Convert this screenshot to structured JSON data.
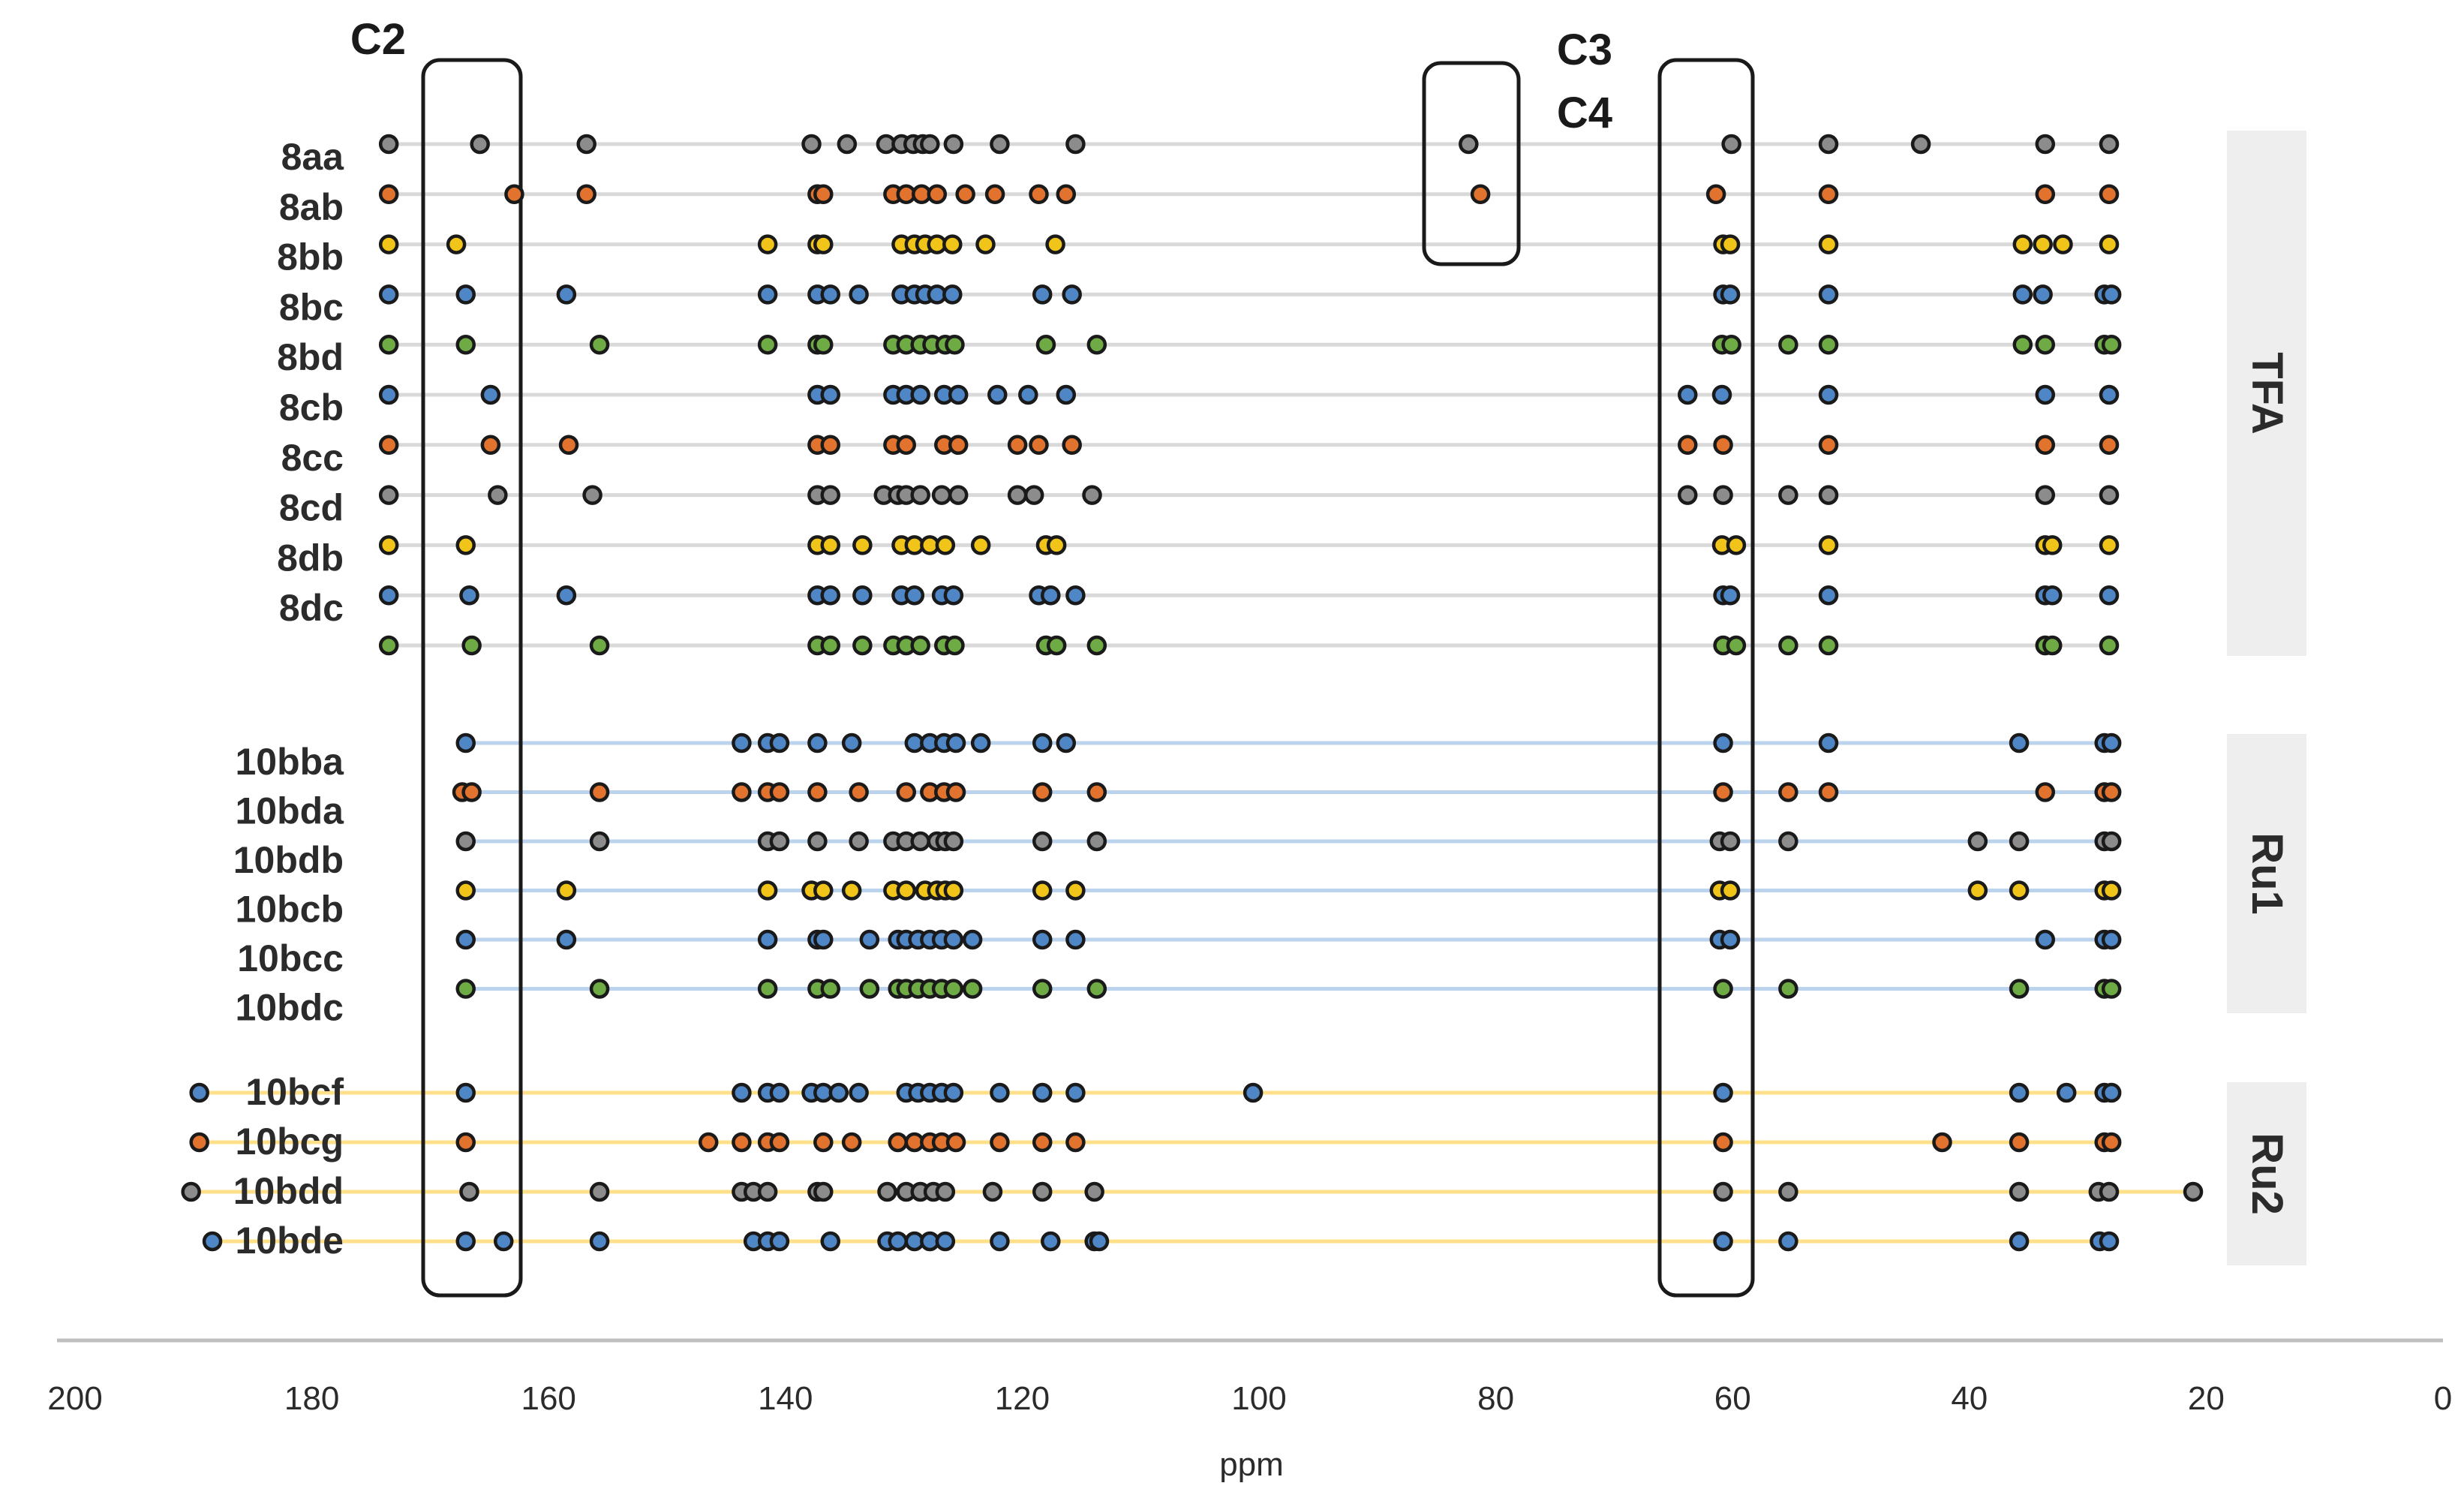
{
  "chart_data": {
    "type": "scatter",
    "xlabel": "ppm",
    "xlim": [
      200,
      0
    ],
    "ticks": [
      200,
      180,
      160,
      140,
      120,
      100,
      80,
      60,
      40,
      20,
      0
    ],
    "colors": {
      "grey": "#8c8c8c",
      "orange": "#e2732f",
      "yellow": "#f0c419",
      "blue": "#4f86c6",
      "green": "#6fab45",
      "tfa_line": "#d9d9d9",
      "ru1_line": "#bcd3ee",
      "ru2_line": "#ffe08a",
      "band": "#eeeeee"
    },
    "groups": [
      {
        "name": "TFA",
        "line": "tfa_line",
        "rows": [
          {
            "label": "8aa",
            "color": "grey",
            "shifts": [
              173.5,
              165.8,
              156.8,
              137.8,
              134.8,
              131.5,
              130.2,
              129.2,
              128.4,
              127.8,
              125.8,
              121.9,
              115.5,
              82.3,
              60.1,
              51.9,
              44.1,
              33.6,
              28.2
            ]
          },
          {
            "label": "8ab",
            "color": "orange",
            "shifts": [
              173.5,
              162.9,
              156.8,
              137.3,
              136.8,
              130.9,
              129.8,
              128.5,
              127.2,
              124.8,
              122.3,
              118.6,
              116.3,
              81.3,
              61.4,
              51.9,
              33.6,
              28.2
            ]
          },
          {
            "label": "8bb",
            "color": "yellow",
            "shifts": [
              173.5,
              167.8,
              141.5,
              137.3,
              136.8,
              130.2,
              129.1,
              128.2,
              127.2,
              125.9,
              123.1,
              117.2,
              60.8,
              60.2,
              51.9,
              35.5,
              33.8,
              32.1,
              28.2
            ]
          },
          {
            "label": "8bc",
            "color": "blue",
            "shifts": [
              173.5,
              167.0,
              158.5,
              141.5,
              137.3,
              136.2,
              133.8,
              130.2,
              129.1,
              128.2,
              127.2,
              125.9,
              118.3,
              115.8,
              60.8,
              60.2,
              51.9,
              35.5,
              33.8,
              28.6,
              28.0
            ]
          },
          {
            "label": "8bd",
            "color": "green",
            "shifts": [
              173.5,
              167.0,
              155.7,
              141.5,
              137.3,
              136.8,
              130.9,
              129.8,
              128.6,
              127.6,
              126.5,
              125.7,
              118.0,
              113.7,
              60.9,
              60.1,
              55.3,
              51.9,
              35.5,
              33.6,
              28.6,
              28.0
            ]
          },
          {
            "label": "8cb",
            "color": "blue",
            "shifts": [
              173.5,
              164.9,
              137.3,
              136.2,
              130.9,
              129.8,
              128.6,
              126.6,
              125.4,
              122.1,
              119.5,
              116.3,
              63.8,
              60.9,
              51.9,
              33.6,
              28.2
            ]
          },
          {
            "label": "8cc",
            "color": "orange",
            "shifts": [
              173.5,
              164.9,
              158.3,
              137.3,
              136.2,
              130.9,
              129.8,
              126.6,
              125.4,
              120.4,
              118.6,
              115.8,
              63.8,
              60.8,
              51.9,
              33.6,
              28.2
            ]
          },
          {
            "label": "8cd",
            "color": "grey",
            "shifts": [
              173.5,
              164.3,
              156.3,
              137.3,
              136.2,
              131.7,
              130.5,
              129.8,
              128.6,
              126.8,
              125.4,
              120.4,
              119.0,
              114.1,
              63.8,
              60.8,
              55.3,
              51.9,
              33.6,
              28.2
            ]
          },
          {
            "label": "8db",
            "color": "yellow",
            "shifts": [
              173.5,
              167.0,
              137.3,
              136.2,
              133.5,
              130.2,
              129.1,
              127.8,
              126.5,
              123.5,
              118.0,
              117.1,
              60.9,
              59.7,
              51.9,
              33.6,
              33.0,
              28.2
            ]
          },
          {
            "label": "8dc",
            "color": "blue",
            "shifts": [
              173.5,
              166.7,
              158.5,
              137.3,
              136.2,
              133.5,
              130.2,
              129.1,
              126.8,
              125.8,
              118.6,
              117.6,
              115.5,
              60.8,
              60.2,
              51.9,
              33.6,
              33.0,
              28.2
            ]
          },
          {
            "label": "",
            "color": "green",
            "shifts": [
              173.5,
              166.5,
              155.7,
              137.3,
              136.2,
              133.5,
              130.9,
              129.8,
              128.6,
              126.6,
              125.7,
              118.0,
              117.1,
              113.7,
              60.8,
              59.7,
              55.3,
              51.9,
              33.6,
              33.0,
              28.2
            ]
          }
        ]
      },
      {
        "name": "Ru1",
        "line": "ru1_line",
        "rows": [
          {
            "label": "10bba",
            "color": "blue",
            "shifts": [
              167.0,
              143.7,
              141.5,
              140.5,
              137.3,
              134.4,
              129.1,
              127.8,
              126.6,
              125.6,
              123.5,
              118.3,
              116.3,
              60.8,
              51.9,
              35.8,
              28.6,
              28.0
            ]
          },
          {
            "label": "10bda",
            "color": "orange",
            "shifts": [
              167.3,
              166.5,
              155.7,
              143.7,
              141.5,
              140.5,
              137.3,
              133.8,
              129.8,
              127.8,
              126.6,
              125.6,
              118.3,
              113.7,
              60.8,
              55.3,
              51.9,
              33.6,
              28.6,
              28.0
            ]
          },
          {
            "label": "10bdb",
            "color": "grey",
            "shifts": [
              167.0,
              155.7,
              141.5,
              140.5,
              137.3,
              133.8,
              130.9,
              129.8,
              128.6,
              127.2,
              126.5,
              125.8,
              118.3,
              113.7,
              61.1,
              60.2,
              55.3,
              39.3,
              35.8,
              28.6,
              28.0
            ]
          },
          {
            "label": "10bcb",
            "color": "yellow",
            "shifts": [
              167.0,
              158.5,
              141.5,
              137.8,
              136.8,
              134.4,
              130.9,
              129.8,
              128.2,
              127.2,
              126.5,
              125.8,
              118.3,
              115.5,
              61.1,
              60.2,
              39.3,
              35.8,
              28.6,
              28.0
            ]
          },
          {
            "label": "10bcc",
            "color": "blue",
            "shifts": [
              167.0,
              158.5,
              141.5,
              137.3,
              136.8,
              132.9,
              130.5,
              129.8,
              128.8,
              127.8,
              126.8,
              125.8,
              124.2,
              118.3,
              115.5,
              61.1,
              60.2,
              33.6,
              28.6,
              28.0
            ]
          },
          {
            "label": "10bdc",
            "color": "green",
            "shifts": [
              167.0,
              155.7,
              141.5,
              137.3,
              136.2,
              132.9,
              130.5,
              129.8,
              128.8,
              127.8,
              126.8,
              125.8,
              124.2,
              118.3,
              113.7,
              60.8,
              55.3,
              35.8,
              28.6,
              28.0
            ]
          }
        ]
      },
      {
        "name": "Ru2",
        "line": "ru2_line",
        "rows": [
          {
            "label": "10bcf",
            "color": "blue",
            "shifts": [
              189.5,
              167.0,
              143.7,
              141.5,
              140.5,
              137.8,
              136.8,
              135.5,
              133.8,
              129.8,
              128.8,
              127.8,
              126.8,
              125.8,
              121.9,
              118.3,
              115.5,
              100.5,
              60.8,
              35.8,
              31.8,
              28.6,
              28.0
            ]
          },
          {
            "label": "10bcg",
            "color": "orange",
            "shifts": [
              189.5,
              167.0,
              146.5,
              143.7,
              141.5,
              140.5,
              136.8,
              134.4,
              130.5,
              129.1,
              127.8,
              126.8,
              125.6,
              121.9,
              118.3,
              115.5,
              60.8,
              42.3,
              35.8,
              28.6,
              28.0
            ]
          },
          {
            "label": "10bdd",
            "color": "grey",
            "shifts": [
              190.2,
              166.7,
              155.7,
              143.7,
              142.7,
              141.5,
              137.3,
              136.8,
              131.4,
              129.8,
              128.6,
              127.5,
              126.5,
              122.5,
              118.3,
              113.9,
              60.8,
              55.3,
              35.8,
              29.1,
              28.2,
              21.1
            ]
          },
          {
            "label": "10bde",
            "color": "blue",
            "shifts": [
              188.4,
              167.0,
              163.8,
              155.7,
              142.7,
              141.5,
              140.5,
              136.2,
              131.4,
              130.5,
              129.1,
              127.8,
              126.5,
              121.9,
              117.6,
              113.9,
              113.5,
              60.8,
              55.3,
              35.8,
              29.0,
              28.2
            ]
          }
        ]
      }
    ],
    "highlight_boxes": [
      {
        "label": "C2"
      },
      {
        "label": "C3"
      },
      {
        "label": "C4"
      },
      {
        "label": ""
      }
    ]
  }
}
